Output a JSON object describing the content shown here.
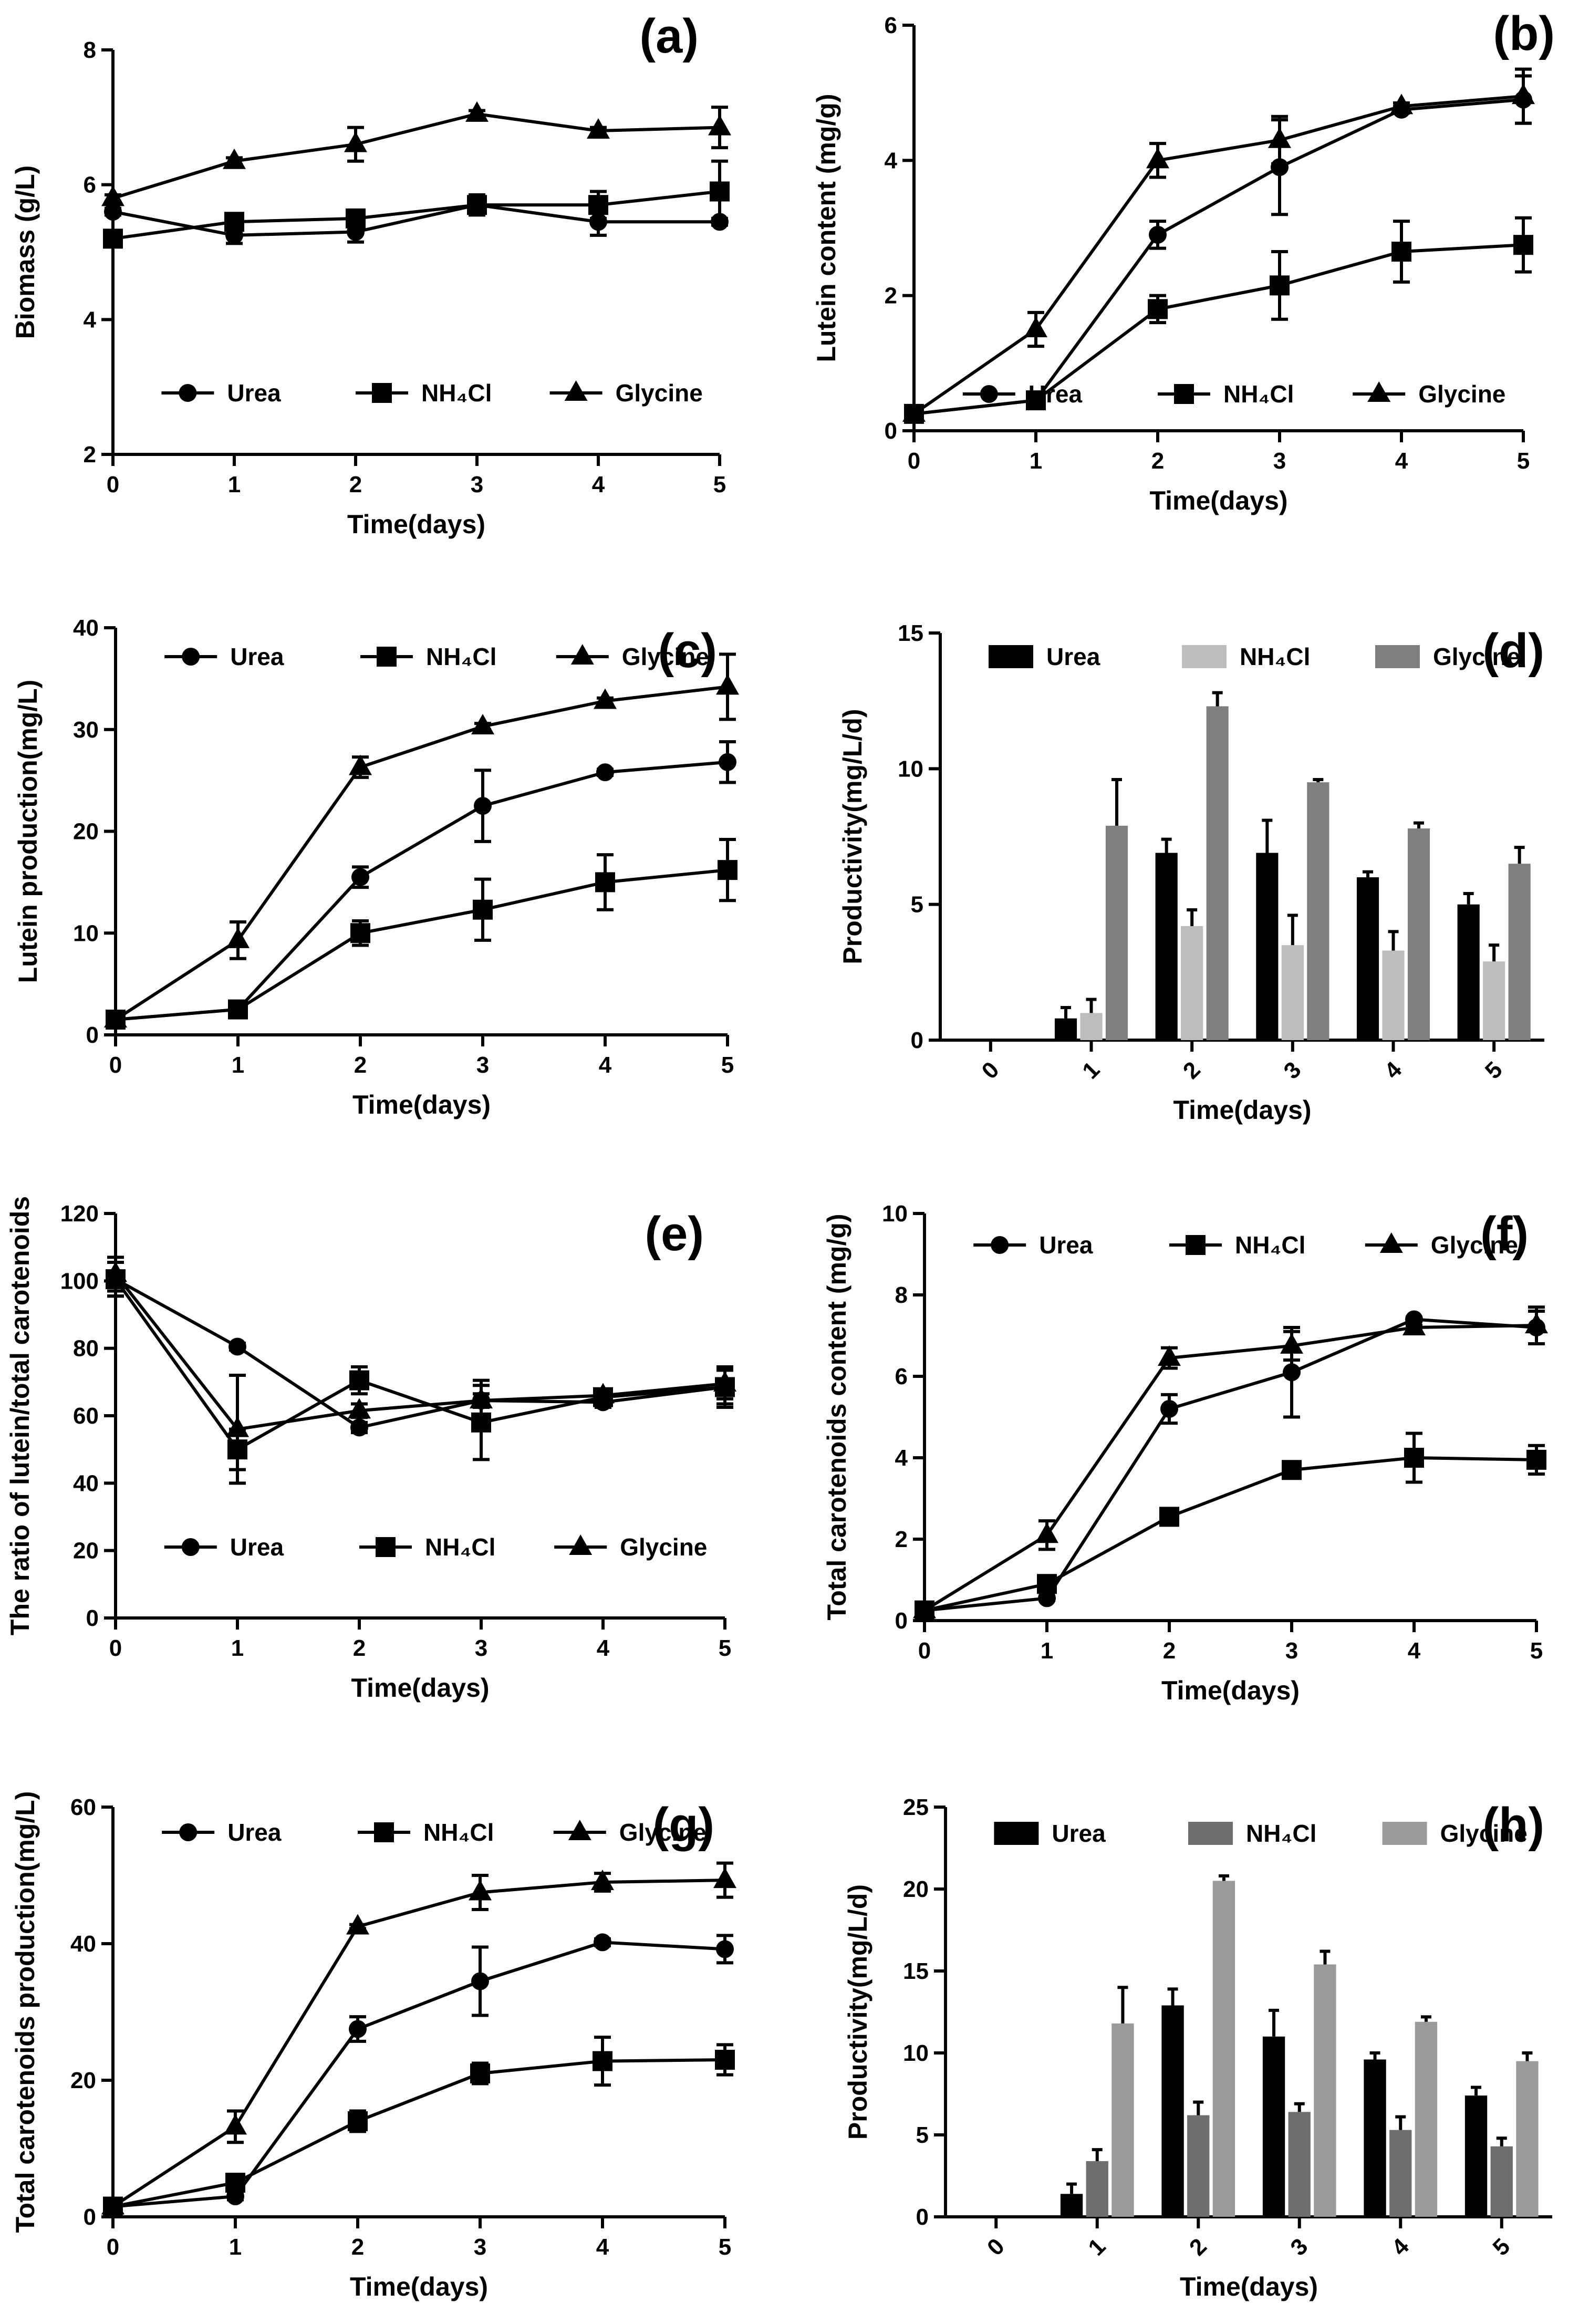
{
  "chart_data": [
    {
      "id": "a",
      "type": "line",
      "panel_label": "(a)",
      "xlabel": "Time(days)",
      "ylabel": "Biomass (g/L)",
      "xlim": [
        0,
        5
      ],
      "ylim": [
        2,
        8
      ],
      "xticks": [
        0,
        1,
        2,
        3,
        4,
        5
      ],
      "yticks": [
        2,
        4,
        6,
        8
      ],
      "x": [
        0,
        1,
        2,
        3,
        4,
        5
      ],
      "legend_position": "bottom",
      "series": [
        {
          "name": "Urea",
          "marker": "circle",
          "values": [
            5.6,
            5.25,
            5.3,
            5.7,
            5.45,
            5.45
          ],
          "errors": [
            0.05,
            0.12,
            0.15,
            0.05,
            0.2,
            0.05
          ]
        },
        {
          "name": "NH₄Cl",
          "marker": "square",
          "values": [
            5.2,
            5.45,
            5.5,
            5.7,
            5.7,
            5.9
          ],
          "errors": [
            0.05,
            0.1,
            0.12,
            0.15,
            0.2,
            0.45
          ]
        },
        {
          "name": "Glycine",
          "marker": "triangle",
          "values": [
            5.8,
            6.35,
            6.6,
            7.05,
            6.8,
            6.85
          ],
          "errors": [
            0.05,
            0.05,
            0.25,
            0.05,
            0.05,
            0.3
          ]
        }
      ]
    },
    {
      "id": "b",
      "type": "line",
      "panel_label": "(b)",
      "xlabel": "Time(days)",
      "ylabel": "Lutein content (mg/g)",
      "xlim": [
        0,
        5
      ],
      "ylim": [
        0,
        6
      ],
      "xticks": [
        0,
        1,
        2,
        3,
        4,
        5
      ],
      "yticks": [
        0,
        2,
        4,
        6
      ],
      "x": [
        0,
        1,
        2,
        3,
        4,
        5
      ],
      "legend_position": "bottom",
      "series": [
        {
          "name": "Urea",
          "marker": "circle",
          "values": [
            0.25,
            0.45,
            2.9,
            3.9,
            4.75,
            4.9
          ],
          "errors": [
            0.05,
            0.05,
            0.2,
            0.7,
            0.05,
            0.35
          ]
        },
        {
          "name": "NH₄Cl",
          "marker": "square",
          "values": [
            0.25,
            0.45,
            1.8,
            2.15,
            2.65,
            2.75
          ],
          "errors": [
            0.05,
            0.05,
            0.2,
            0.5,
            0.45,
            0.4
          ]
        },
        {
          "name": "Glycine",
          "marker": "triangle",
          "values": [
            0.25,
            1.5,
            4.0,
            4.3,
            4.8,
            4.95
          ],
          "errors": [
            0.05,
            0.25,
            0.25,
            0.35,
            0.05,
            0.4
          ]
        }
      ]
    },
    {
      "id": "c",
      "type": "line",
      "panel_label": "(c)",
      "xlabel": "Time(days)",
      "ylabel": "Lutein production(mg/L)",
      "xlim": [
        0,
        5
      ],
      "ylim": [
        0,
        40
      ],
      "xticks": [
        0,
        1,
        2,
        3,
        4,
        5
      ],
      "yticks": [
        0,
        10,
        20,
        30,
        40
      ],
      "x": [
        0,
        1,
        2,
        3,
        4,
        5
      ],
      "legend_position": "top",
      "series": [
        {
          "name": "Urea",
          "marker": "circle",
          "values": [
            1.5,
            2.5,
            15.5,
            22.5,
            25.8,
            26.8
          ],
          "errors": [
            0.2,
            0.3,
            1.0,
            3.5,
            0.3,
            2.0
          ]
        },
        {
          "name": "NH₄Cl",
          "marker": "square",
          "values": [
            1.5,
            2.5,
            10.0,
            12.3,
            15.0,
            16.2
          ],
          "errors": [
            0.2,
            0.3,
            1.2,
            3.0,
            2.7,
            3.0
          ]
        },
        {
          "name": "Glycine",
          "marker": "triangle",
          "values": [
            1.5,
            9.3,
            26.3,
            30.3,
            32.8,
            34.2
          ],
          "errors": [
            0.2,
            1.8,
            1.0,
            0.3,
            0.3,
            3.2
          ]
        }
      ]
    },
    {
      "id": "d",
      "type": "bar",
      "panel_label": "(d)",
      "xlabel": "Time(days)",
      "ylabel": "Productivity(mg/L/d)",
      "ylim": [
        0,
        15
      ],
      "yticks": [
        0,
        5,
        10,
        15
      ],
      "categories": [
        "0",
        "1",
        "2",
        "3",
        "4",
        "5"
      ],
      "legend_position": "top",
      "series": [
        {
          "name": "Urea",
          "color": "#000000",
          "values": [
            0,
            0.8,
            6.9,
            6.9,
            6.0,
            5.0
          ],
          "errors": [
            0,
            0.4,
            0.5,
            1.2,
            0.2,
            0.4
          ]
        },
        {
          "name": "NH₄Cl",
          "color": "#bdbdbd",
          "values": [
            0,
            1.0,
            4.2,
            3.5,
            3.3,
            2.9
          ],
          "errors": [
            0,
            0.5,
            0.6,
            1.1,
            0.7,
            0.6
          ]
        },
        {
          "name": "Glycine",
          "color": "#7f7f7f",
          "values": [
            0,
            7.9,
            12.3,
            9.5,
            7.8,
            6.5
          ],
          "errors": [
            0,
            1.7,
            0.5,
            0.1,
            0.2,
            0.6
          ]
        }
      ]
    },
    {
      "id": "e",
      "type": "line",
      "panel_label": "(e)",
      "xlabel": "Time(days)",
      "ylabel": "The ratio of lutein/total carotenoids",
      "xlim": [
        0,
        5
      ],
      "ylim": [
        0,
        120
      ],
      "xticks": [
        0,
        1,
        2,
        3,
        4,
        5
      ],
      "yticks": [
        0,
        20,
        40,
        60,
        80,
        100,
        120
      ],
      "x": [
        0,
        1,
        2,
        3,
        4,
        5
      ],
      "legend_position": "bottom",
      "series": [
        {
          "name": "Urea",
          "marker": "circle",
          "values": [
            100.5,
            80.5,
            56.5,
            64.5,
            64.0,
            68.5
          ],
          "errors": [
            5,
            1,
            1.5,
            2,
            1.5,
            5
          ]
        },
        {
          "name": "NH₄Cl",
          "marker": "square",
          "values": [
            100.5,
            50.0,
            70.5,
            58.0,
            65.5,
            68.5
          ],
          "errors": [
            5,
            6,
            4,
            11,
            2,
            6
          ]
        },
        {
          "name": "Glycine",
          "marker": "triangle",
          "values": [
            102.0,
            56.0,
            61.5,
            64.5,
            66.0,
            69.5
          ],
          "errors": [
            5,
            16,
            2,
            6,
            1.5,
            4.5
          ]
        }
      ]
    },
    {
      "id": "f",
      "type": "line",
      "panel_label": "(f)",
      "xlabel": "Time(days)",
      "ylabel": "Total carotenoids content (mg/g)",
      "xlim": [
        0,
        5
      ],
      "ylim": [
        0,
        10
      ],
      "xticks": [
        0,
        1,
        2,
        3,
        4,
        5
      ],
      "yticks": [
        0,
        2,
        4,
        6,
        8,
        10
      ],
      "x": [
        0,
        1,
        2,
        3,
        4,
        5
      ],
      "legend_position": "top",
      "series": [
        {
          "name": "Urea",
          "marker": "circle",
          "values": [
            0.25,
            0.55,
            5.2,
            6.1,
            7.4,
            7.2
          ],
          "errors": [
            0.05,
            0.05,
            0.35,
            1.1,
            0.05,
            0.4
          ]
        },
        {
          "name": "NH₄Cl",
          "marker": "square",
          "values": [
            0.25,
            0.9,
            2.55,
            3.7,
            4.0,
            3.95
          ],
          "errors": [
            0.05,
            0.1,
            0.2,
            0.1,
            0.6,
            0.35
          ]
        },
        {
          "name": "Glycine",
          "marker": "triangle",
          "values": [
            0.25,
            2.1,
            6.45,
            6.75,
            7.2,
            7.25
          ],
          "errors": [
            0.05,
            0.35,
            0.25,
            0.35,
            0.05,
            0.45
          ]
        }
      ]
    },
    {
      "id": "g",
      "type": "line",
      "panel_label": "(g)",
      "xlabel": "Time(days)",
      "ylabel": "Total carotenoids production(mg/L)",
      "xlim": [
        0,
        5
      ],
      "ylim": [
        0,
        60
      ],
      "xticks": [
        0,
        1,
        2,
        3,
        4,
        5
      ],
      "yticks": [
        0,
        20,
        40,
        60
      ],
      "x": [
        0,
        1,
        2,
        3,
        4,
        5
      ],
      "legend_position": "top",
      "series": [
        {
          "name": "Urea",
          "marker": "circle",
          "values": [
            1.5,
            3.0,
            27.5,
            34.5,
            40.2,
            39.2
          ],
          "errors": [
            0.3,
            0.5,
            1.8,
            5.0,
            0.5,
            2.0
          ]
        },
        {
          "name": "NH₄Cl",
          "marker": "square",
          "values": [
            1.5,
            5.0,
            14.0,
            21.0,
            22.8,
            23.0
          ],
          "errors": [
            0.3,
            0.6,
            1.5,
            1.5,
            3.5,
            2.2
          ]
        },
        {
          "name": "Glycine",
          "marker": "triangle",
          "values": [
            1.5,
            13.2,
            42.5,
            47.5,
            49.0,
            49.3
          ],
          "errors": [
            0.3,
            2.3,
            0.3,
            2.5,
            1.3,
            2.5
          ]
        }
      ]
    },
    {
      "id": "h",
      "type": "bar",
      "panel_label": "(h)",
      "xlabel": "Time(days)",
      "ylabel": "Productivity(mg/L/d)",
      "ylim": [
        0,
        25
      ],
      "yticks": [
        0,
        5,
        10,
        15,
        20,
        25
      ],
      "categories": [
        "0",
        "1",
        "2",
        "3",
        "4",
        "5"
      ],
      "legend_position": "top",
      "series": [
        {
          "name": "Urea",
          "color": "#000000",
          "values": [
            0,
            1.4,
            12.9,
            11.0,
            9.6,
            7.4
          ],
          "errors": [
            0,
            0.6,
            1.0,
            1.6,
            0.4,
            0.5
          ]
        },
        {
          "name": "NH₄Cl",
          "color": "#6e6e6e",
          "values": [
            0,
            3.4,
            6.2,
            6.4,
            5.3,
            4.3
          ],
          "errors": [
            0,
            0.7,
            0.8,
            0.5,
            0.8,
            0.5
          ]
        },
        {
          "name": "Glycine",
          "color": "#9a9a9a",
          "values": [
            0,
            11.8,
            20.5,
            15.4,
            11.9,
            9.5
          ],
          "errors": [
            0,
            2.2,
            0.3,
            0.8,
            0.3,
            0.5
          ]
        }
      ]
    }
  ]
}
